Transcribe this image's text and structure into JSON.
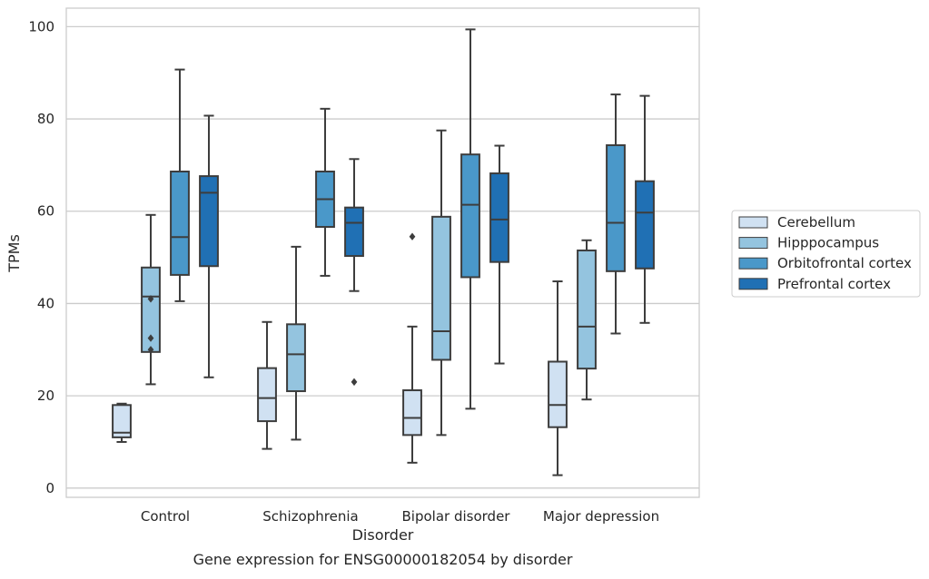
{
  "chart_data": {
    "type": "box",
    "xlabel": "Disorder",
    "ylabel": "TPMs",
    "caption": "Gene expression for ENSG00000182054 by disorder",
    "ylim": [
      -2,
      104
    ],
    "yticks": [
      0,
      20,
      40,
      60,
      80,
      100
    ],
    "grid": "horizontal",
    "legend_position": "outside-right",
    "categories": [
      "Control",
      "Schizophrenia",
      "Bipolar disorder",
      "Major depression"
    ],
    "series": [
      {
        "name": "Cerebellum",
        "color": "#d0e1f2",
        "boxes": [
          {
            "whisker_low": 10,
            "q1": 11,
            "median": 12,
            "q3": 18,
            "whisker_high": 18.3,
            "outliers": []
          },
          {
            "whisker_low": 8.5,
            "q1": 14.5,
            "median": 19.5,
            "q3": 26,
            "whisker_high": 36,
            "outliers": []
          },
          {
            "whisker_low": 5.5,
            "q1": 11.5,
            "median": 15.2,
            "q3": 21.2,
            "whisker_high": 35,
            "outliers": [
              54.5
            ]
          },
          {
            "whisker_low": 2.8,
            "q1": 13.2,
            "median": 18,
            "q3": 27.4,
            "whisker_high": 44.8,
            "outliers": []
          }
        ]
      },
      {
        "name": "Hipppocampus",
        "color": "#94c4df",
        "boxes": [
          {
            "whisker_low": 22.5,
            "q1": 29.5,
            "median": 41.5,
            "q3": 47.8,
            "whisker_high": 59.2,
            "outliers": [
              41,
              32.5,
              30
            ]
          },
          {
            "whisker_low": 10.5,
            "q1": 21,
            "median": 29,
            "q3": 35.5,
            "whisker_high": 52.3,
            "outliers": []
          },
          {
            "whisker_low": 11.5,
            "q1": 27.8,
            "median": 34,
            "q3": 58.8,
            "whisker_high": 77.5,
            "outliers": []
          },
          {
            "whisker_low": 19.2,
            "q1": 25.9,
            "median": 35,
            "q3": 51.5,
            "whisker_high": 53.7,
            "outliers": []
          }
        ]
      },
      {
        "name": "Orbitofrontal cortex",
        "color": "#4a98c9",
        "boxes": [
          {
            "whisker_low": 40.5,
            "q1": 46.2,
            "median": 54.4,
            "q3": 68.6,
            "whisker_high": 90.7,
            "outliers": []
          },
          {
            "whisker_low": 46,
            "q1": 56.6,
            "median": 62.6,
            "q3": 68.6,
            "whisker_high": 82.2,
            "outliers": []
          },
          {
            "whisker_low": 17.2,
            "q1": 45.7,
            "median": 61.4,
            "q3": 72.3,
            "whisker_high": 99.4,
            "outliers": []
          },
          {
            "whisker_low": 33.5,
            "q1": 47,
            "median": 57.5,
            "q3": 74.3,
            "whisker_high": 85.3,
            "outliers": []
          }
        ]
      },
      {
        "name": "Prefrontal cortex",
        "color": "#2070b4",
        "boxes": [
          {
            "whisker_low": 24,
            "q1": 48.1,
            "median": 64,
            "q3": 67.6,
            "whisker_high": 80.7,
            "outliers": []
          },
          {
            "whisker_low": 42.7,
            "q1": 50.3,
            "median": 57.5,
            "q3": 60.8,
            "whisker_high": 71.3,
            "outliers": [
              23
            ]
          },
          {
            "whisker_low": 27,
            "q1": 49,
            "median": 58.2,
            "q3": 68.2,
            "whisker_high": 74.2,
            "outliers": []
          },
          {
            "whisker_low": 35.8,
            "q1": 47.6,
            "median": 59.7,
            "q3": 66.5,
            "whisker_high": 85
          }
        ]
      }
    ]
  }
}
